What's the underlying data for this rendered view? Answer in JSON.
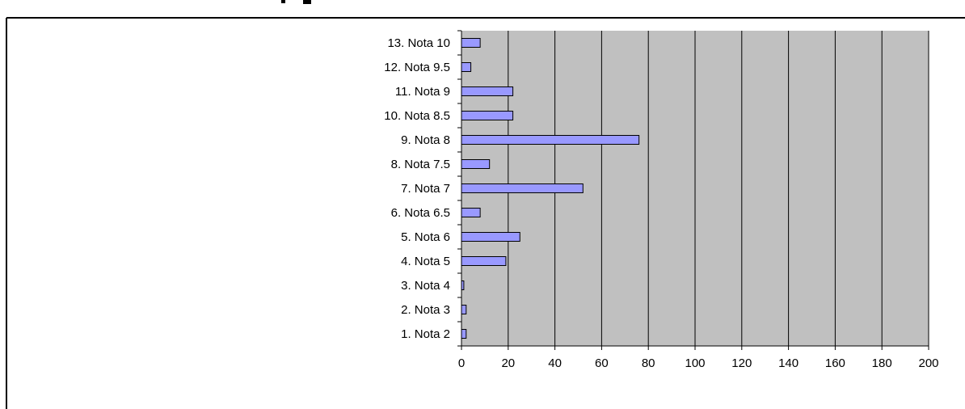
{
  "chart_data": {
    "type": "bar",
    "orientation": "horizontal",
    "categories": [
      "1. Nota 2",
      "2. Nota 3",
      "3. Nota 4",
      "4. Nota 5",
      "5. Nota 6",
      "6. Nota 6.5",
      "7. Nota 7",
      "8. Nota 7.5",
      "9. Nota 8",
      "10. Nota 8.5",
      "11. Nota 9",
      "12. Nota 9.5",
      "13. Nota 10"
    ],
    "values": [
      2,
      2,
      1,
      19,
      25,
      8,
      52,
      12,
      76,
      22,
      22,
      4,
      8
    ],
    "title": "",
    "xlabel": "",
    "ylabel": "",
    "xlim": [
      0,
      200
    ],
    "xticks": [
      "0",
      "20",
      "40",
      "60",
      "80",
      "100",
      "120",
      "140",
      "160",
      "180",
      "200"
    ],
    "grid": true,
    "legend": "none",
    "colors": {
      "bar_fill": "#9999ff",
      "bar_stroke": "#000000",
      "plot_background": "#c0c0c0",
      "page_background": "#ffffff"
    }
  }
}
